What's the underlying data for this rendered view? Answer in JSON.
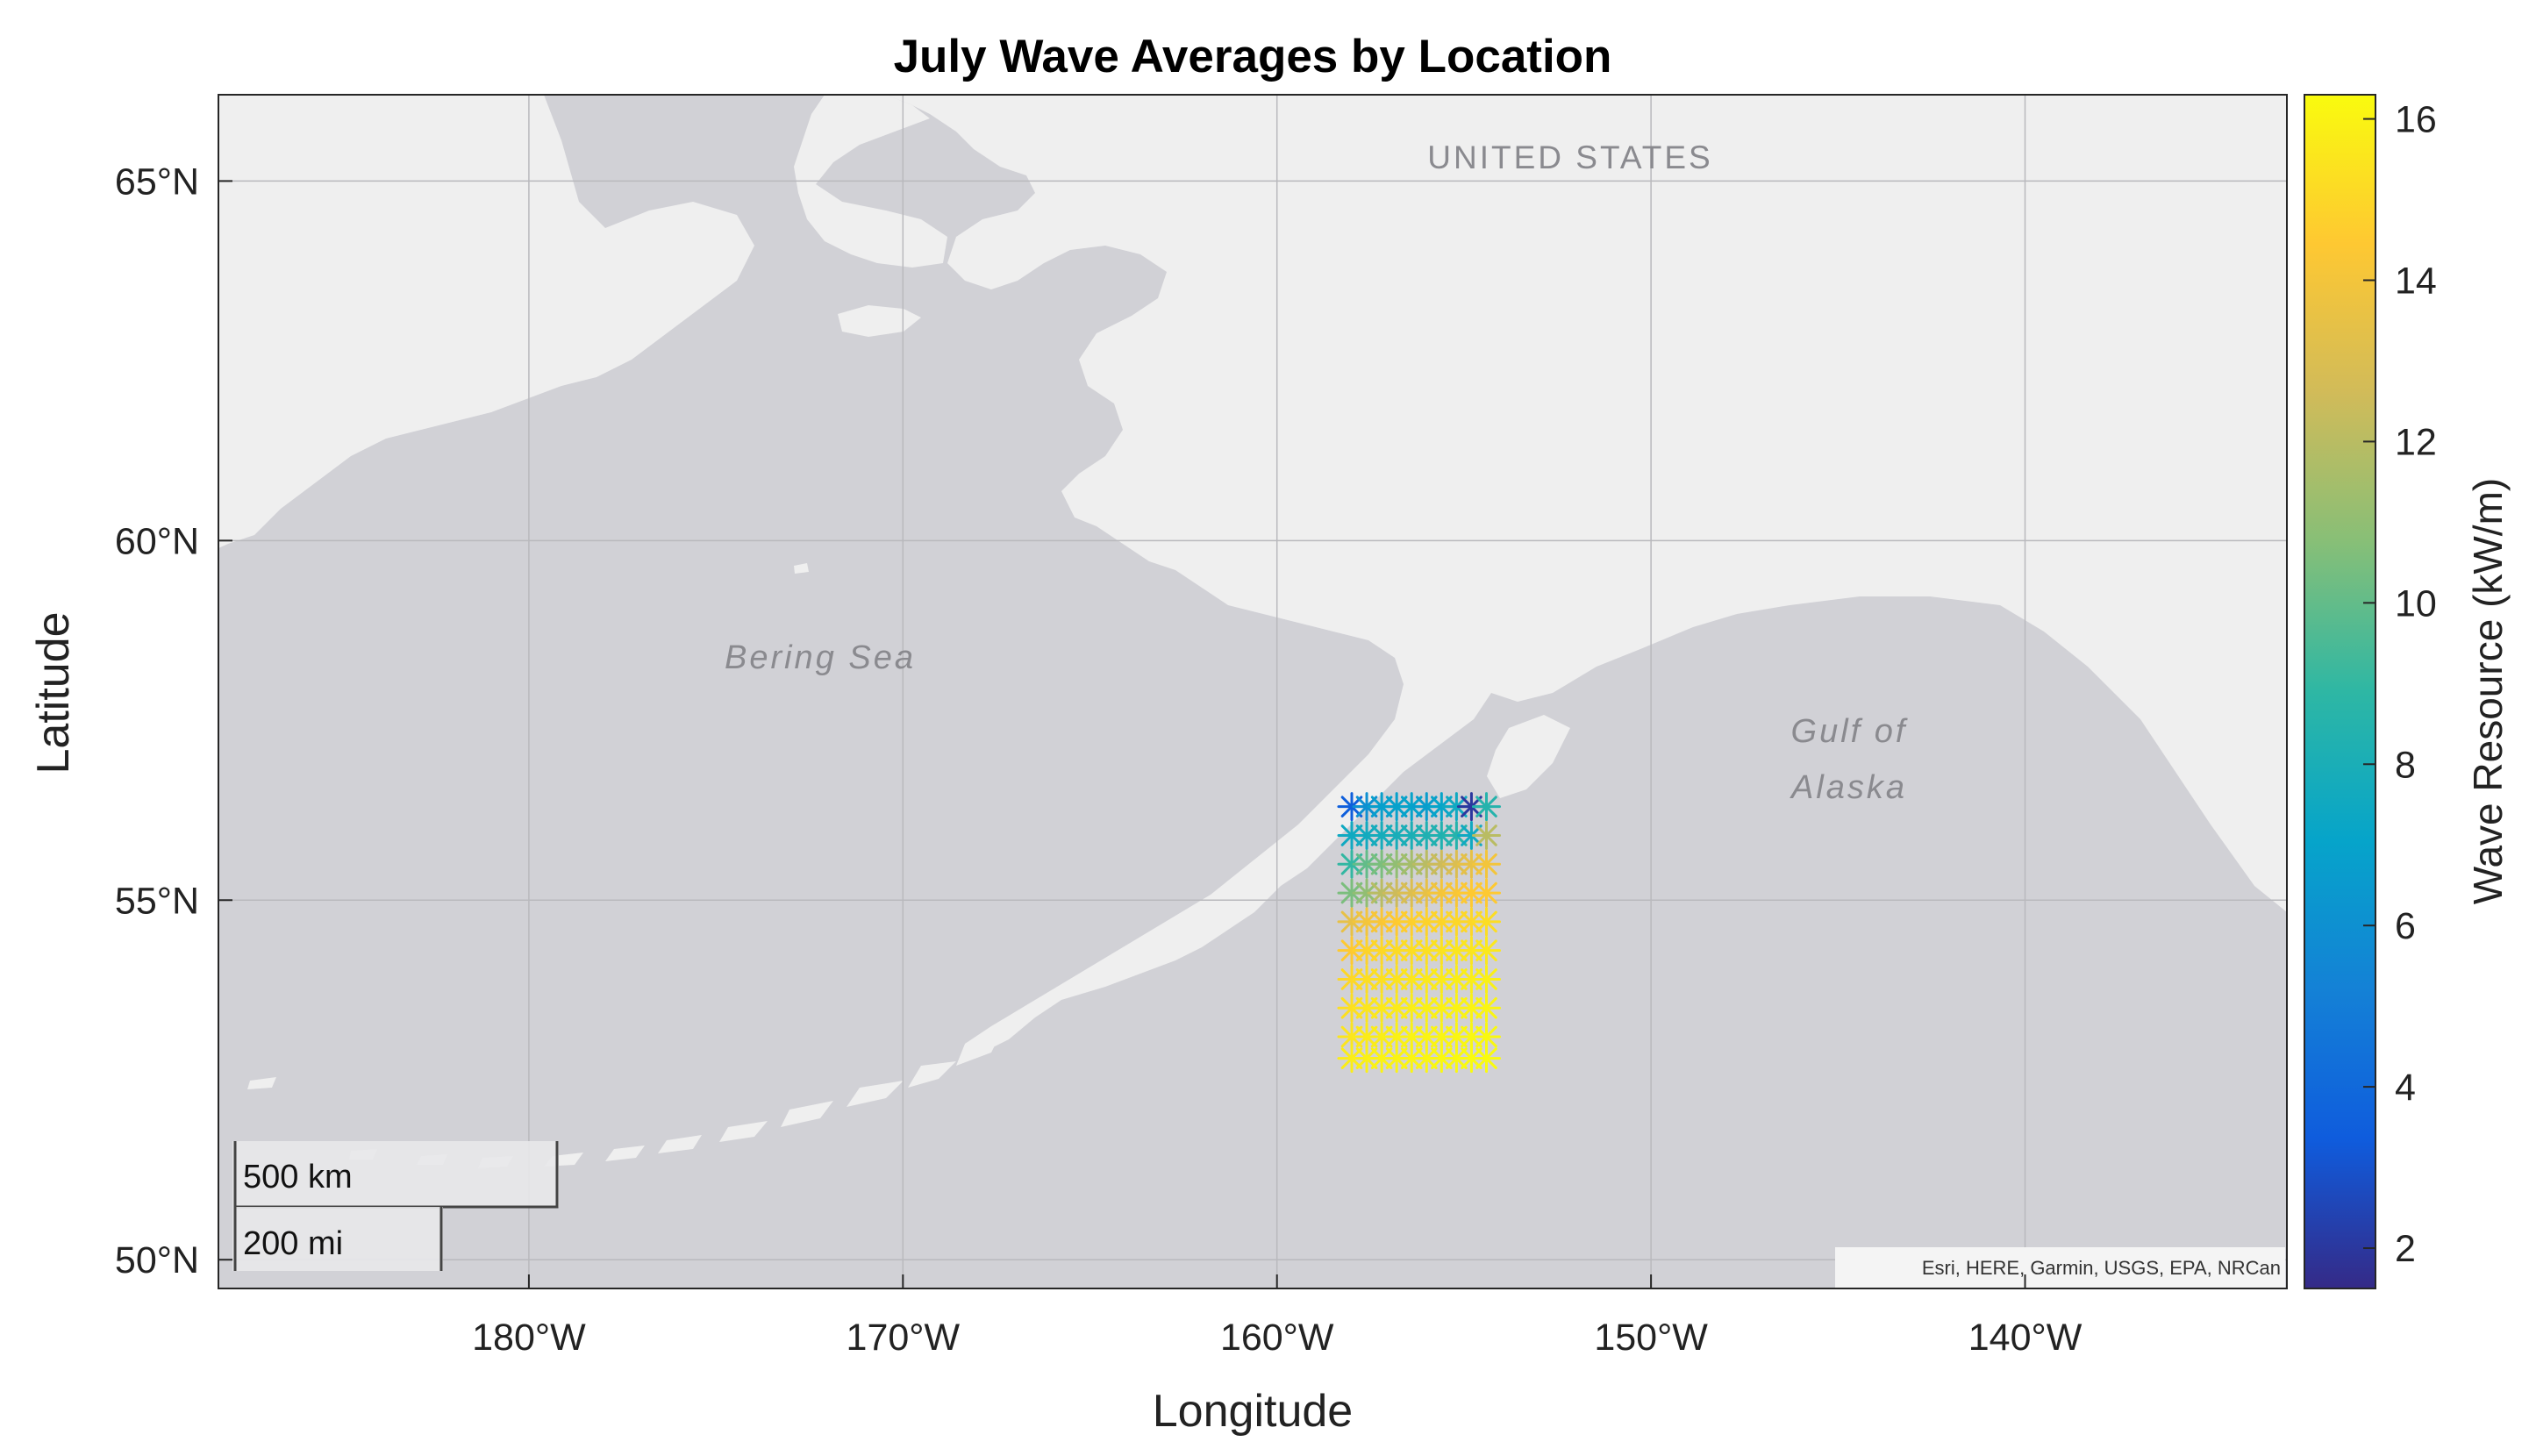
{
  "title": "July Wave Averages by Location",
  "xlabel": "Longitude",
  "ylabel": "Latitude",
  "map_labels": {
    "country": "UNITED STATES",
    "sea": "Bering Sea",
    "gulf_line1": "Gulf of",
    "gulf_line2": "Alaska"
  },
  "scale_bar": {
    "km_label": "500 km",
    "mi_label": "200 mi"
  },
  "attribution": "Esri, HERE, Garmin, USGS, EPA, NRCan",
  "colorbar": {
    "label": "Wave Resource (kW/m)",
    "colormap": "parula",
    "range": [
      1.5,
      16.3
    ]
  },
  "colors": {
    "water": "#d1d1d6",
    "land": "#efefef",
    "grid": "#b9b9bd",
    "parula": [
      "#352a87",
      "#0f5cdd",
      "#1481d6",
      "#06a4ca",
      "#2eb7a4",
      "#87bf77",
      "#d1bb59",
      "#fec832",
      "#f9fb0e"
    ]
  },
  "chart_data": {
    "type": "scatter",
    "marker": "asterisk",
    "x_ticks": [
      "180°W",
      "170°W",
      "160°W",
      "150°W",
      "140°W"
    ],
    "y_ticks": [
      "50°N",
      "55°N",
      "60°N",
      "65°N"
    ],
    "colorbar_ticks": [
      "2",
      "4",
      "6",
      "8",
      "10",
      "12",
      "14",
      "16"
    ],
    "xlim": [
      -188.3,
      -133.0
    ],
    "ylim": [
      49.6,
      66.2
    ],
    "lon": [
      -158.0,
      -157.6,
      -157.2,
      -156.8,
      -156.4,
      -156.0,
      -155.6,
      -155.2,
      -154.8,
      -154.4
    ],
    "lat": [
      56.3,
      55.9,
      55.5,
      55.1,
      54.7,
      54.3,
      53.9,
      53.5,
      53.1,
      52.8
    ],
    "values": [
      [
        3.5,
        6.0,
        6.8,
        6.9,
        7.0,
        6.7,
        7.1,
        7.5,
        2.0,
        8.5
      ],
      [
        7.5,
        7.6,
        7.8,
        7.9,
        8.0,
        8.2,
        8.3,
        8.5,
        7.5,
        12.0
      ],
      [
        9.0,
        10.0,
        10.5,
        11.0,
        11.5,
        12.0,
        12.5,
        13.0,
        13.5,
        14.0
      ],
      [
        10.5,
        11.0,
        12.0,
        12.5,
        13.0,
        13.5,
        14.0,
        14.2,
        14.5,
        14.5
      ],
      [
        13.5,
        14.0,
        14.2,
        14.5,
        14.7,
        14.8,
        14.9,
        15.0,
        15.0,
        15.2
      ],
      [
        14.5,
        14.8,
        15.0,
        15.1,
        15.2,
        15.3,
        15.4,
        15.5,
        15.5,
        15.6
      ],
      [
        15.0,
        15.2,
        15.3,
        15.4,
        15.5,
        15.6,
        15.7,
        15.8,
        15.8,
        15.9
      ],
      [
        15.3,
        15.5,
        15.6,
        15.7,
        15.8,
        15.9,
        15.9,
        16.0,
        16.0,
        16.1
      ],
      [
        15.5,
        15.7,
        15.8,
        15.9,
        16.0,
        16.0,
        16.1,
        16.1,
        16.2,
        16.2
      ],
      [
        15.8,
        15.9,
        16.0,
        16.0,
        16.1,
        16.1,
        16.2,
        16.2,
        16.3,
        16.3
      ]
    ]
  }
}
